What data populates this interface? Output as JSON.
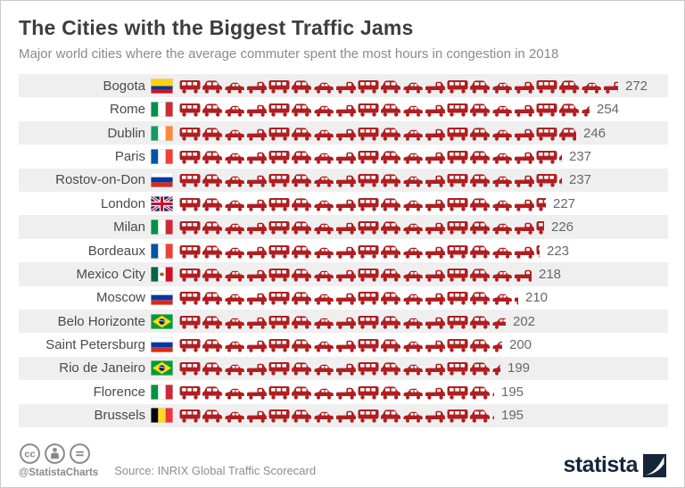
{
  "header": {
    "title": "The Cities with the Biggest Traffic Jams",
    "subtitle": "Major world cities where the average commuter spent the most hours in congestion in 2018"
  },
  "chart_data": {
    "type": "bar",
    "style": "pictogram-car-icons",
    "title": "The Cities with the Biggest Traffic Jams",
    "subtitle": "Major world cities where the average commuter spent the most hours in congestion in 2018",
    "unit": "hours spent in congestion",
    "xlim": [
      0,
      280
    ],
    "categories": [
      "Bogota",
      "Rome",
      "Dublin",
      "Paris",
      "Rostov-on-Don",
      "London",
      "Milan",
      "Bordeaux",
      "Mexico City",
      "Moscow",
      "Belo Horizonte",
      "Saint Petersburg",
      "Rio de Janeiro",
      "Florence",
      "Brussels"
    ],
    "values": [
      272,
      254,
      246,
      237,
      237,
      227,
      226,
      223,
      218,
      210,
      202,
      200,
      199,
      195,
      195
    ],
    "flags": [
      "colombia",
      "italy",
      "ireland",
      "france",
      "russia",
      "uk",
      "italy",
      "france",
      "mexico",
      "russia",
      "brazil",
      "russia",
      "brazil",
      "italy",
      "belgium"
    ]
  },
  "footer": {
    "license_icons": [
      "cc-icon",
      "cc-by-icon",
      "cc-nd-icon"
    ],
    "handle": "@StatistaCharts",
    "source": "Source: INRIX Global Traffic Scorecard",
    "brand": "statista"
  },
  "colors": {
    "car_red": "#b01e20",
    "row_alt": "#efefef",
    "brand_navy": "#15263c",
    "title_gray": "#3d3d3d",
    "subtitle_gray": "#8a8a8a"
  }
}
